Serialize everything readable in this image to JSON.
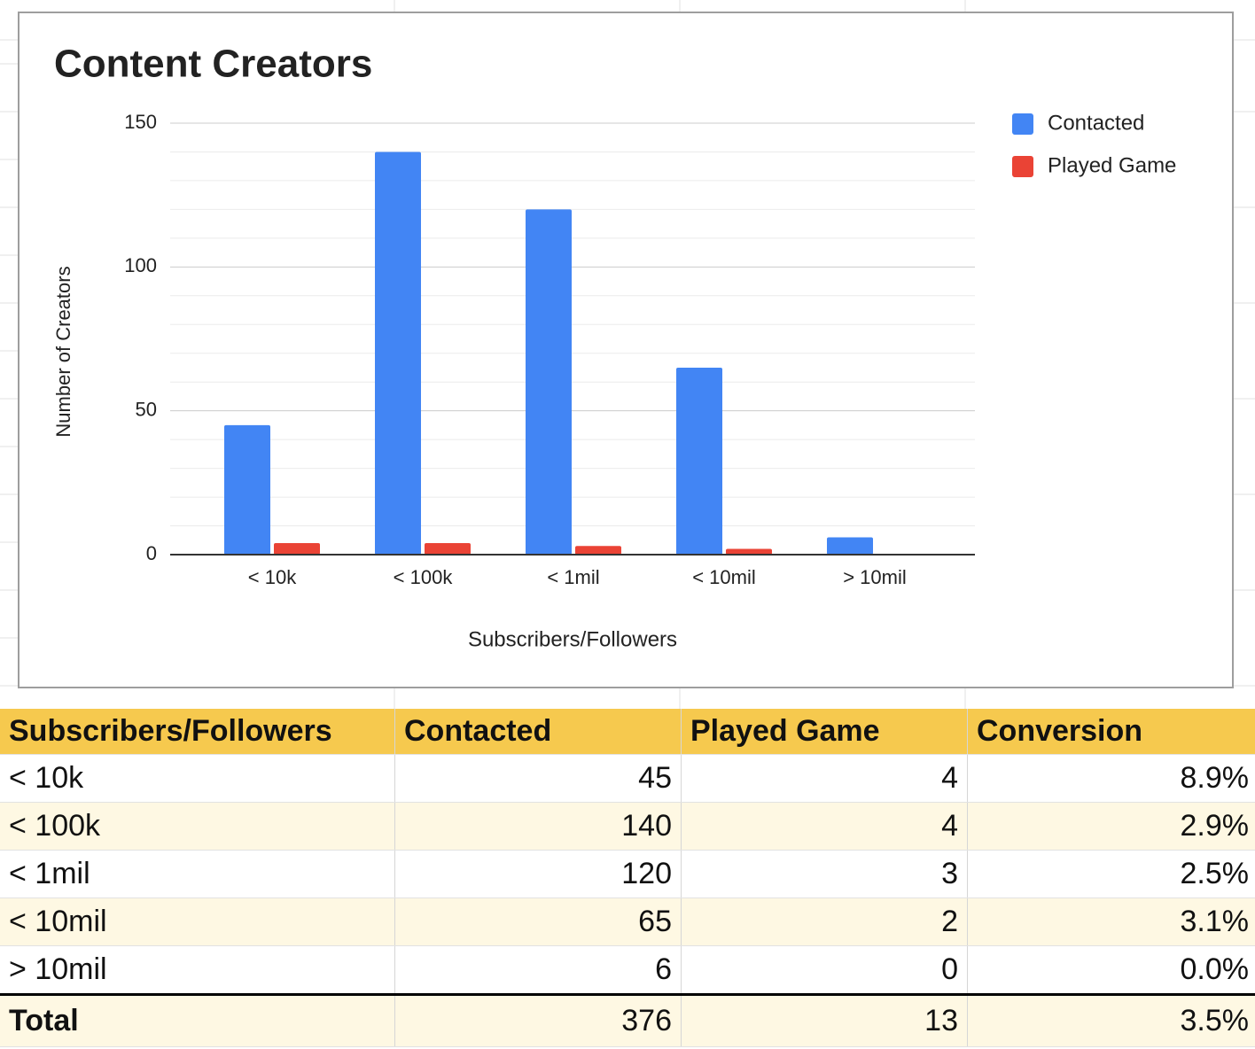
{
  "chart_data": {
    "type": "bar",
    "title": "Content Creators",
    "x_label": "Subscribers/Followers",
    "y_label": "Number of Creators",
    "categories": [
      "< 10k",
      "< 100k",
      "< 1mil",
      "< 10mil",
      "> 10mil"
    ],
    "series": [
      {
        "name": "Contacted",
        "color": "#4285f4",
        "values": [
          45,
          140,
          120,
          65,
          6
        ]
      },
      {
        "name": "Played Game",
        "color": "#ea4335",
        "values": [
          4,
          4,
          3,
          2,
          0
        ]
      }
    ],
    "ylim": [
      0,
      150
    ],
    "yticks": [
      0,
      50,
      100,
      150
    ],
    "minor_yticks": [
      10,
      20,
      30,
      40,
      60,
      70,
      80,
      90,
      110,
      120,
      130,
      140
    ],
    "grid": true,
    "legend": "right"
  },
  "table": {
    "header": [
      "Subscribers/Followers",
      "Contacted",
      "Played Game",
      "Conversion"
    ],
    "rows": [
      [
        "< 10k",
        "45",
        "4",
        "8.9%"
      ],
      [
        "< 100k",
        "140",
        "4",
        "2.9%"
      ],
      [
        "< 1mil",
        "120",
        "3",
        "2.5%"
      ],
      [
        "< 10mil",
        "65",
        "2",
        "3.1%"
      ],
      [
        "> 10mil",
        "6",
        "0",
        "0.0%"
      ]
    ],
    "total": [
      "Total",
      "376",
      "13",
      "3.5%"
    ]
  }
}
